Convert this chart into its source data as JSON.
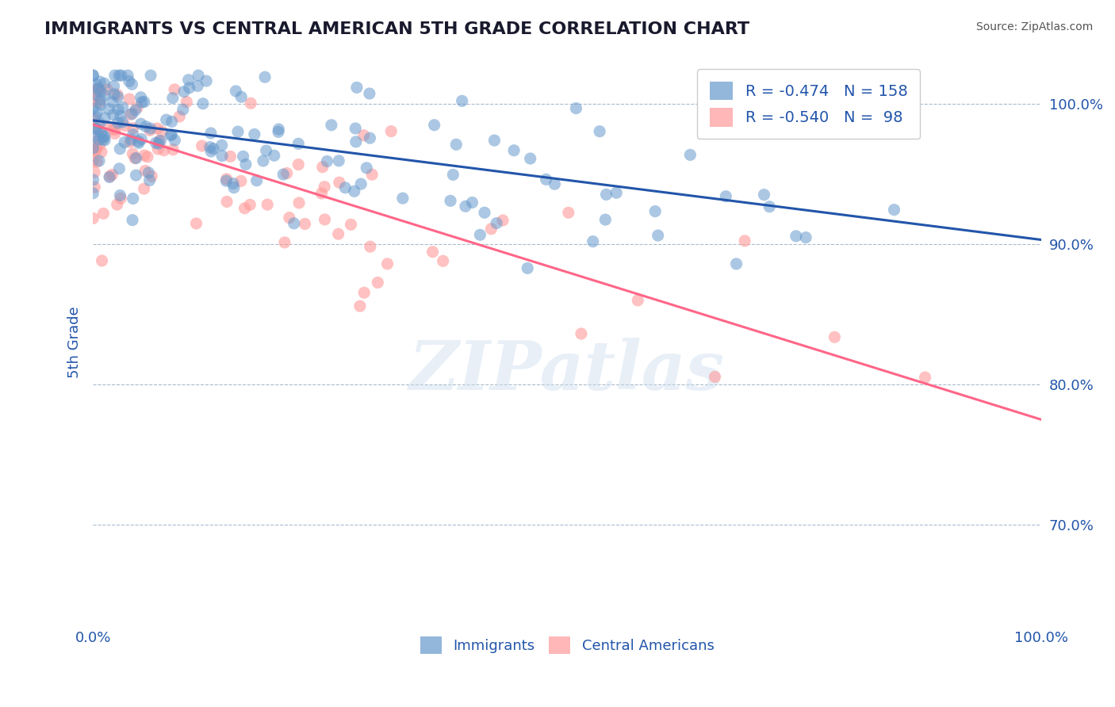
{
  "title": "IMMIGRANTS VS CENTRAL AMERICAN 5TH GRADE CORRELATION CHART",
  "source_text": "Source: ZipAtlas.com",
  "xlabel": "",
  "ylabel": "5th Grade",
  "watermark": "ZIPatlas",
  "xlim": [
    0.0,
    1.0
  ],
  "ylim": [
    0.63,
    1.03
  ],
  "yticks": [
    0.7,
    0.8,
    0.9,
    1.0
  ],
  "ytick_labels": [
    "70.0%",
    "80.0%",
    "90.0%",
    "100.0%"
  ],
  "xtick_labels": [
    "0.0%",
    "100.0%"
  ],
  "blue_color": "#6699CC",
  "pink_color": "#FF9999",
  "blue_line_color": "#2255AA",
  "pink_line_color": "#FF6688",
  "legend_blue_label": "R =  -0.474   N =  158",
  "legend_pink_label": "R =  -0.540   N =   98",
  "legend_blue_r": "-0.474",
  "legend_blue_n": "158",
  "legend_pink_r": "-0.540",
  "legend_pink_n": "98",
  "blue_intercept": 0.988,
  "blue_slope": -0.085,
  "pink_intercept": 0.985,
  "pink_slope": -0.21,
  "blue_N": 158,
  "pink_N": 98,
  "blue_seed": 42,
  "pink_seed": 99,
  "title_color": "#1a1a2e",
  "axis_label_color": "#2255AA",
  "grid_color": "#AABBCC",
  "background_color": "#FFFFFF"
}
